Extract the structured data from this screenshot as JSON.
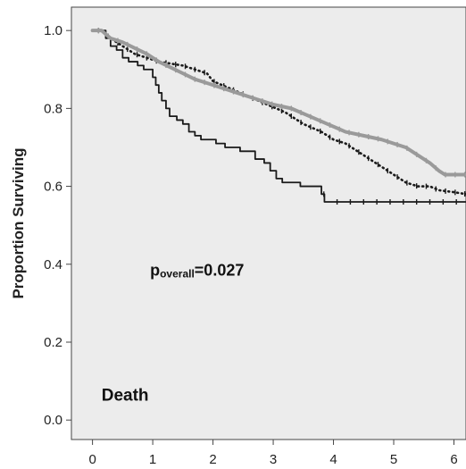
{
  "chart_data": {
    "type": "line",
    "title": "",
    "xlabel": "",
    "ylabel": "Proportion Surviving",
    "xlim": [
      -0.35,
      6.2
    ],
    "ylim": [
      -0.05,
      1.06
    ],
    "x_ticks": [
      "0",
      "1",
      "2",
      "3",
      "4",
      "5",
      "6"
    ],
    "y_ticks": [
      "0.0",
      "0.2",
      "0.4",
      "0.6",
      "0.8",
      "1.0"
    ],
    "grid": false,
    "annotations": {
      "pvalue_label": "p",
      "pvalue_subscript": "overall",
      "pvalue_text": "=0.027",
      "pvalue_position": [
        1.0,
        0.38
      ],
      "event_label": "Death",
      "event_position": [
        0.15,
        0.05
      ]
    },
    "series": [
      {
        "color": "#1a1a1a",
        "style": "step",
        "censored_marks": true,
        "points": [
          [
            0.0,
            1.0
          ],
          [
            0.15,
            1.0
          ],
          [
            0.22,
            0.98
          ],
          [
            0.3,
            0.96
          ],
          [
            0.4,
            0.95
          ],
          [
            0.5,
            0.93
          ],
          [
            0.6,
            0.92
          ],
          [
            0.75,
            0.91
          ],
          [
            0.85,
            0.9
          ],
          [
            1.0,
            0.88
          ],
          [
            1.05,
            0.86
          ],
          [
            1.1,
            0.84
          ],
          [
            1.15,
            0.82
          ],
          [
            1.22,
            0.8
          ],
          [
            1.28,
            0.78
          ],
          [
            1.4,
            0.77
          ],
          [
            1.5,
            0.76
          ],
          [
            1.6,
            0.74
          ],
          [
            1.7,
            0.73
          ],
          [
            1.8,
            0.72
          ],
          [
            2.05,
            0.71
          ],
          [
            2.2,
            0.7
          ],
          [
            2.45,
            0.69
          ],
          [
            2.7,
            0.67
          ],
          [
            2.85,
            0.66
          ],
          [
            2.95,
            0.64
          ],
          [
            3.05,
            0.62
          ],
          [
            3.15,
            0.61
          ],
          [
            3.45,
            0.6
          ],
          [
            3.8,
            0.58
          ],
          [
            3.85,
            0.56
          ],
          [
            6.2,
            0.56
          ]
        ]
      },
      {
        "color": "#1a1a1a",
        "style": "dotted",
        "censored_marks": true,
        "points": [
          [
            0.0,
            1.0
          ],
          [
            0.15,
            1.0
          ],
          [
            0.3,
            0.98
          ],
          [
            0.5,
            0.96
          ],
          [
            0.7,
            0.94
          ],
          [
            0.9,
            0.93
          ],
          [
            1.1,
            0.92
          ],
          [
            1.3,
            0.915
          ],
          [
            1.5,
            0.91
          ],
          [
            1.7,
            0.9
          ],
          [
            1.9,
            0.89
          ],
          [
            2.0,
            0.87
          ],
          [
            2.3,
            0.85
          ],
          [
            2.6,
            0.83
          ],
          [
            2.9,
            0.81
          ],
          [
            3.2,
            0.79
          ],
          [
            3.5,
            0.76
          ],
          [
            3.8,
            0.74
          ],
          [
            4.0,
            0.72
          ],
          [
            4.2,
            0.71
          ],
          [
            4.5,
            0.68
          ],
          [
            4.8,
            0.65
          ],
          [
            5.0,
            0.63
          ],
          [
            5.2,
            0.61
          ],
          [
            5.4,
            0.6
          ],
          [
            5.6,
            0.6
          ],
          [
            5.75,
            0.59
          ],
          [
            6.0,
            0.585
          ],
          [
            6.2,
            0.58
          ]
        ]
      },
      {
        "color": "#9a9a9a",
        "style": "thick",
        "censored_marks": true,
        "points": [
          [
            0.0,
            1.0
          ],
          [
            0.15,
            1.0
          ],
          [
            0.3,
            0.98
          ],
          [
            0.5,
            0.97
          ],
          [
            0.7,
            0.955
          ],
          [
            0.9,
            0.94
          ],
          [
            1.1,
            0.92
          ],
          [
            1.3,
            0.905
          ],
          [
            1.5,
            0.89
          ],
          [
            1.7,
            0.875
          ],
          [
            1.9,
            0.865
          ],
          [
            2.1,
            0.855
          ],
          [
            2.4,
            0.84
          ],
          [
            2.7,
            0.825
          ],
          [
            3.0,
            0.81
          ],
          [
            3.3,
            0.8
          ],
          [
            3.6,
            0.78
          ],
          [
            3.9,
            0.76
          ],
          [
            4.2,
            0.74
          ],
          [
            4.5,
            0.73
          ],
          [
            4.8,
            0.72
          ],
          [
            5.0,
            0.71
          ],
          [
            5.2,
            0.7
          ],
          [
            5.4,
            0.68
          ],
          [
            5.6,
            0.66
          ],
          [
            5.75,
            0.64
          ],
          [
            5.85,
            0.63
          ],
          [
            6.0,
            0.63
          ],
          [
            6.2,
            0.63
          ]
        ]
      }
    ]
  }
}
